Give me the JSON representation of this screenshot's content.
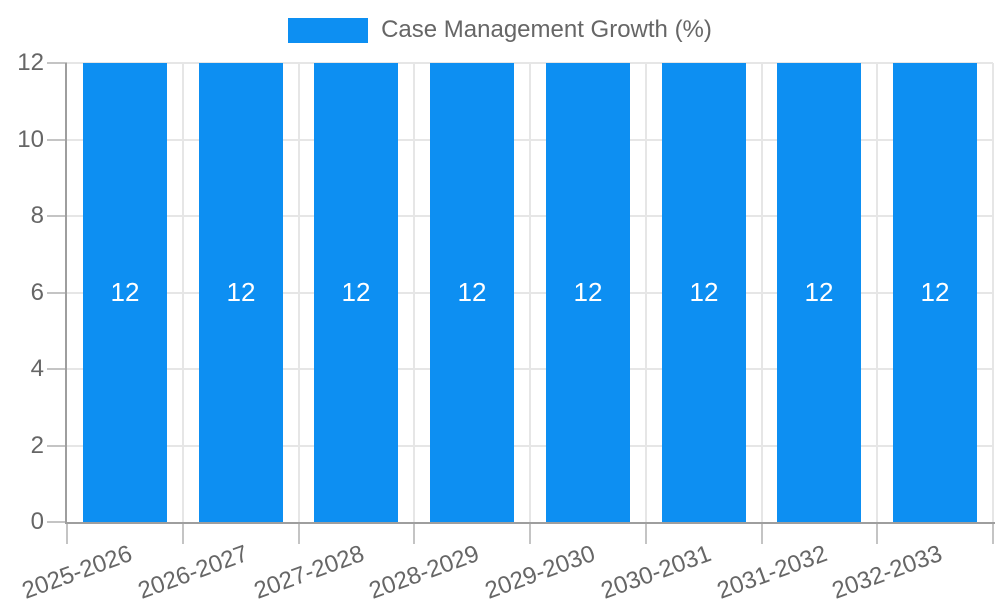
{
  "chart_data": {
    "type": "bar",
    "title": "",
    "legend_label": "Case Management Growth (%)",
    "legend_position": "top",
    "categories": [
      "2025-2026",
      "2026-2027",
      "2027-2028",
      "2028-2029",
      "2029-2030",
      "2030-2031",
      "2031-2032",
      "2032-2033"
    ],
    "values": [
      12,
      12,
      12,
      12,
      12,
      12,
      12,
      12
    ],
    "bar_labels": [
      "12",
      "12",
      "12",
      "12",
      "12",
      "12",
      "12",
      "12"
    ],
    "xlabel": "",
    "ylabel": "",
    "ylim": [
      0,
      12
    ],
    "yticks": [
      0,
      2,
      4,
      6,
      8,
      10,
      12
    ],
    "grid": true,
    "colors": {
      "bar": "#0d8ff2",
      "bar_label": "#ffffff",
      "grid_line": "#e6e6e6",
      "axis_line": "#9e9e9e",
      "tick_mark": "#c4c4c4",
      "tick_label": "#666666",
      "legend_text": "#666666",
      "background": "#ffffff"
    }
  }
}
